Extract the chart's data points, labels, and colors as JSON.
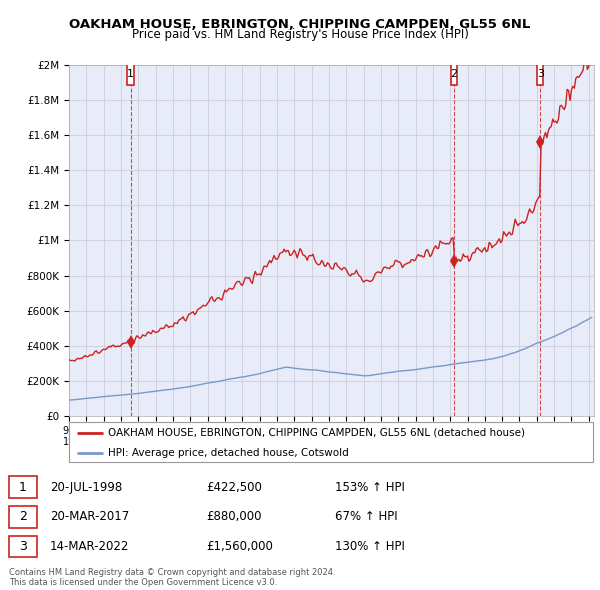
{
  "title": "OAKHAM HOUSE, EBRINGTON, CHIPPING CAMPDEN, GL55 6NL",
  "subtitle": "Price paid vs. HM Land Registry's House Price Index (HPI)",
  "ylim": [
    0,
    2000000
  ],
  "xlim_start": 1995.25,
  "xlim_end": 2025.3,
  "yticks": [
    0,
    200000,
    400000,
    600000,
    800000,
    1000000,
    1200000,
    1400000,
    1600000,
    1800000,
    2000000
  ],
  "ytick_labels": [
    "£0",
    "£200K",
    "£400K",
    "£600K",
    "£800K",
    "£1M",
    "£1.2M",
    "£1.4M",
    "£1.6M",
    "£1.8M",
    "£2M"
  ],
  "sale_color": "#cc2222",
  "hpi_color": "#7799cc",
  "grid_color": "#ccccdd",
  "bg_color": "#e8ecf8",
  "purchases": [
    {
      "date_num": 1998.55,
      "price": 422500,
      "label": "1"
    },
    {
      "date_num": 2017.22,
      "price": 880000,
      "label": "2"
    },
    {
      "date_num": 2022.2,
      "price": 1560000,
      "label": "3"
    }
  ],
  "legend_label_sale": "OAKHAM HOUSE, EBRINGTON, CHIPPING CAMPDEN, GL55 6NL (detached house)",
  "legend_label_hpi": "HPI: Average price, detached house, Cotswold",
  "table_rows": [
    {
      "num": "1",
      "date": "20-JUL-1998",
      "price": "£422,500",
      "hpi": "153% ↑ HPI"
    },
    {
      "num": "2",
      "date": "20-MAR-2017",
      "price": "£880,000",
      "hpi": "67% ↑ HPI"
    },
    {
      "num": "3",
      "date": "14-MAR-2022",
      "price": "£1,560,000",
      "hpi": "130% ↑ HPI"
    }
  ],
  "footer": "Contains HM Land Registry data © Crown copyright and database right 2024.\nThis data is licensed under the Open Government Licence v3.0."
}
